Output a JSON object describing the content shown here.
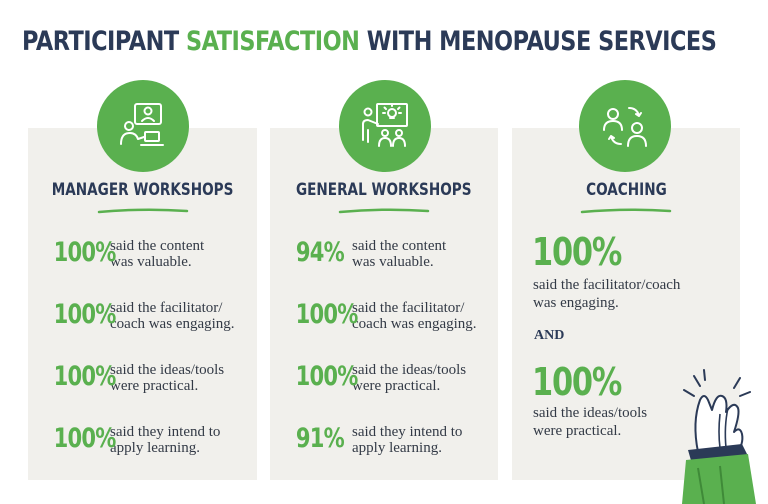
{
  "title": {
    "part1": "PARTICIPANT ",
    "accent": "SATISFACTION",
    "part2": " WITH MENOPAUSE SERVICES"
  },
  "colors": {
    "green": "#5ab04f",
    "navy": "#2b3a57",
    "card": "#f1f0ec"
  },
  "manager": {
    "icon": "video-call-icon",
    "heading": "MANAGER WORKSHOPS",
    "stats": [
      {
        "pct": "100%",
        "line1": "said the content",
        "line2": "was valuable."
      },
      {
        "pct": "100%",
        "line1": "said the facilitator/",
        "line2": "coach was engaging."
      },
      {
        "pct": "100%",
        "line1": "said the ideas/tools",
        "line2": "were practical."
      },
      {
        "pct": "100%",
        "line1": "said they intend to",
        "line2": "apply learning."
      }
    ]
  },
  "general": {
    "icon": "presentation-icon",
    "heading": "GENERAL WORKSHOPS",
    "stats": [
      {
        "pct": "94%",
        "line1": "said the content",
        "line2": "was valuable."
      },
      {
        "pct": "100%",
        "line1": "said the facilitator/",
        "line2": "coach was engaging."
      },
      {
        "pct": "100%",
        "line1": "said the ideas/tools",
        "line2": "were practical."
      },
      {
        "pct": "91%",
        "line1": "said they intend to",
        "line2": "apply learning."
      }
    ]
  },
  "coaching": {
    "icon": "people-exchange-icon",
    "heading": "COACHING",
    "stat1": {
      "pct": "100%",
      "line1": "said the facilitator/coach",
      "line2": "was engaging."
    },
    "and": "AND",
    "stat2": {
      "pct": "100%",
      "line1": "said the ideas/tools",
      "line2": "were practical."
    }
  }
}
